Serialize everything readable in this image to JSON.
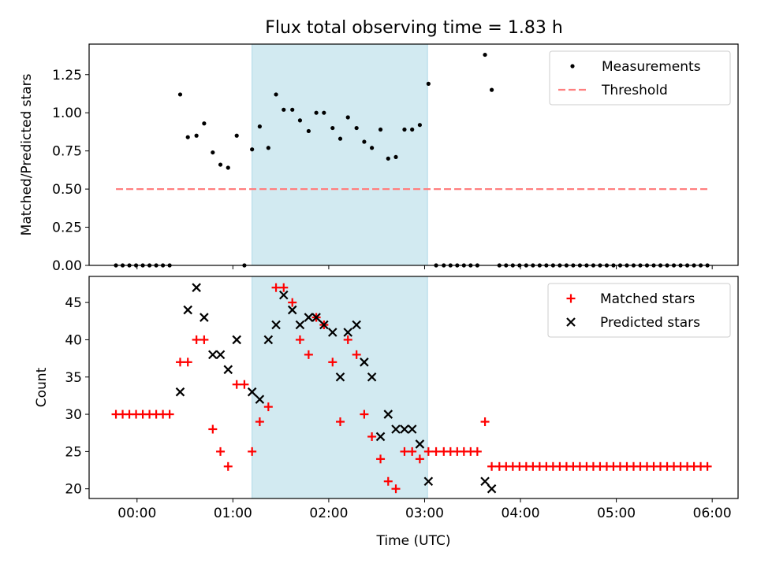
{
  "title": "Flux total observing time = 1.83 h",
  "colors": {
    "measurements": "#000000",
    "threshold": "#ff7f7f",
    "matched": "#ff0000",
    "predicted": "#000000",
    "span": "#add8e6"
  },
  "chart_data": [
    {
      "type": "scatter",
      "ylabel": "Matched/Predicted stars",
      "xlim": [
        -0.5,
        6.27
      ],
      "ylim": [
        0,
        1.45
      ],
      "yticks": [
        0,
        0.25,
        0.5,
        0.75,
        1.0,
        1.25
      ],
      "ytick_labels": [
        "0.00",
        "0.25",
        "0.50",
        "0.75",
        "1.00",
        "1.25"
      ],
      "xticks": [
        0,
        1,
        2,
        3,
        4,
        5,
        6
      ],
      "observing_span": [
        1.2,
        3.03
      ],
      "legend": {
        "position": "upper right",
        "entries": [
          "Measurements",
          "Threshold"
        ]
      },
      "threshold": {
        "name": "Threshold",
        "y": 0.5,
        "x": [
          -0.22,
          5.97
        ]
      },
      "series": [
        {
          "name": "Measurements",
          "x": [
            -0.22,
            -0.15,
            -0.08,
            -0.01,
            0.06,
            0.13,
            0.2,
            0.27,
            0.34,
            0.45,
            0.53,
            0.62,
            0.7,
            0.79,
            0.87,
            0.95,
            1.04,
            1.12,
            1.2,
            1.28,
            1.37,
            1.45,
            1.53,
            1.62,
            1.7,
            1.79,
            1.87,
            1.95,
            2.04,
            2.12,
            2.2,
            2.29,
            2.37,
            2.45,
            2.54,
            2.62,
            2.7,
            2.79,
            2.87,
            2.95,
            3.04,
            3.12,
            3.2,
            3.27,
            3.34,
            3.41,
            3.48,
            3.55,
            3.63,
            3.7,
            3.78,
            3.85,
            3.92,
            3.99,
            4.06,
            4.13,
            4.2,
            4.27,
            4.34,
            4.41,
            4.48,
            4.55,
            4.62,
            4.69,
            4.76,
            4.83,
            4.9,
            4.97,
            5.04,
            5.11,
            5.18,
            5.25,
            5.32,
            5.39,
            5.46,
            5.53,
            5.6,
            5.67,
            5.74,
            5.81,
            5.88,
            5.95
          ],
          "y": [
            0,
            0,
            0,
            0,
            0,
            0,
            0,
            0,
            0,
            1.12,
            0.84,
            0.85,
            0.93,
            0.74,
            0.66,
            0.64,
            0.85,
            0,
            0.76,
            0.91,
            0.77,
            1.12,
            1.02,
            1.02,
            0.95,
            0.88,
            1.0,
            1.0,
            0.9,
            0.83,
            0.97,
            0.9,
            0.81,
            0.77,
            0.89,
            0.7,
            0.71,
            0.89,
            0.89,
            0.92,
            1.19,
            0,
            0,
            0,
            0,
            0,
            0,
            0,
            1.38,
            1.15,
            0,
            0,
            0,
            0,
            0,
            0,
            0,
            0,
            0,
            0,
            0,
            0,
            0,
            0,
            0,
            0,
            0,
            0,
            0,
            0,
            0,
            0,
            0,
            0,
            0,
            0,
            0,
            0,
            0,
            0,
            0,
            0
          ]
        }
      ]
    },
    {
      "type": "scatter",
      "xlabel": "Time (UTC)",
      "ylabel": "Count",
      "xlim": [
        -0.5,
        6.27
      ],
      "ylim": [
        18.7,
        48.5
      ],
      "yticks": [
        20,
        25,
        30,
        35,
        40,
        45
      ],
      "ytick_labels": [
        "20",
        "25",
        "30",
        "35",
        "40",
        "45"
      ],
      "xticks": [
        0,
        1,
        2,
        3,
        4,
        5,
        6
      ],
      "xtick_labels": [
        "00:00",
        "01:00",
        "02:00",
        "03:00",
        "04:00",
        "05:00",
        "06:00"
      ],
      "observing_span": [
        1.2,
        3.03
      ],
      "legend": {
        "position": "upper right",
        "entries": [
          "Matched stars",
          "Predicted stars"
        ]
      },
      "series": [
        {
          "name": "Matched stars",
          "x": [
            -0.22,
            -0.15,
            -0.08,
            -0.01,
            0.06,
            0.13,
            0.2,
            0.27,
            0.34,
            0.45,
            0.53,
            0.62,
            0.7,
            0.79,
            0.87,
            0.95,
            1.04,
            1.12,
            1.2,
            1.28,
            1.37,
            1.45,
            1.53,
            1.62,
            1.7,
            1.79,
            1.87,
            1.95,
            2.04,
            2.12,
            2.2,
            2.29,
            2.37,
            2.45,
            2.54,
            2.62,
            2.7,
            2.79,
            2.87,
            2.95,
            3.04,
            3.12,
            3.2,
            3.27,
            3.34,
            3.41,
            3.48,
            3.55,
            3.63,
            3.7,
            3.78,
            3.85,
            3.92,
            3.99,
            4.06,
            4.13,
            4.2,
            4.27,
            4.34,
            4.41,
            4.48,
            4.55,
            4.62,
            4.69,
            4.76,
            4.83,
            4.9,
            4.97,
            5.04,
            5.11,
            5.18,
            5.25,
            5.32,
            5.39,
            5.46,
            5.53,
            5.6,
            5.67,
            5.74,
            5.81,
            5.88,
            5.95
          ],
          "y": [
            30,
            30,
            30,
            30,
            30,
            30,
            30,
            30,
            30,
            37,
            37,
            40,
            40,
            28,
            25,
            23,
            34,
            34,
            25,
            29,
            31,
            47,
            47,
            45,
            40,
            38,
            43,
            42,
            37,
            29,
            40,
            38,
            30,
            27,
            24,
            21,
            20,
            25,
            25,
            24,
            25,
            25,
            25,
            25,
            25,
            25,
            25,
            25,
            29,
            23,
            23,
            23,
            23,
            23,
            23,
            23,
            23,
            23,
            23,
            23,
            23,
            23,
            23,
            23,
            23,
            23,
            23,
            23,
            23,
            23,
            23,
            23,
            23,
            23,
            23,
            23,
            23,
            23,
            23,
            23,
            23,
            23
          ]
        },
        {
          "name": "Predicted stars",
          "x": [
            0.45,
            0.53,
            0.62,
            0.7,
            0.79,
            0.87,
            0.95,
            1.04,
            1.2,
            1.28,
            1.37,
            1.45,
            1.53,
            1.62,
            1.7,
            1.79,
            1.87,
            1.95,
            2.04,
            2.12,
            2.2,
            2.29,
            2.37,
            2.45,
            2.54,
            2.62,
            2.7,
            2.79,
            2.87,
            2.95,
            3.04,
            3.63,
            3.7
          ],
          "y": [
            33,
            44,
            47,
            43,
            38,
            38,
            36,
            40,
            33,
            32,
            40,
            42,
            46,
            44,
            42,
            43,
            43,
            42,
            41,
            35,
            41,
            42,
            37,
            35,
            27,
            30,
            28,
            28,
            28,
            26,
            21,
            21,
            20
          ]
        }
      ]
    }
  ]
}
